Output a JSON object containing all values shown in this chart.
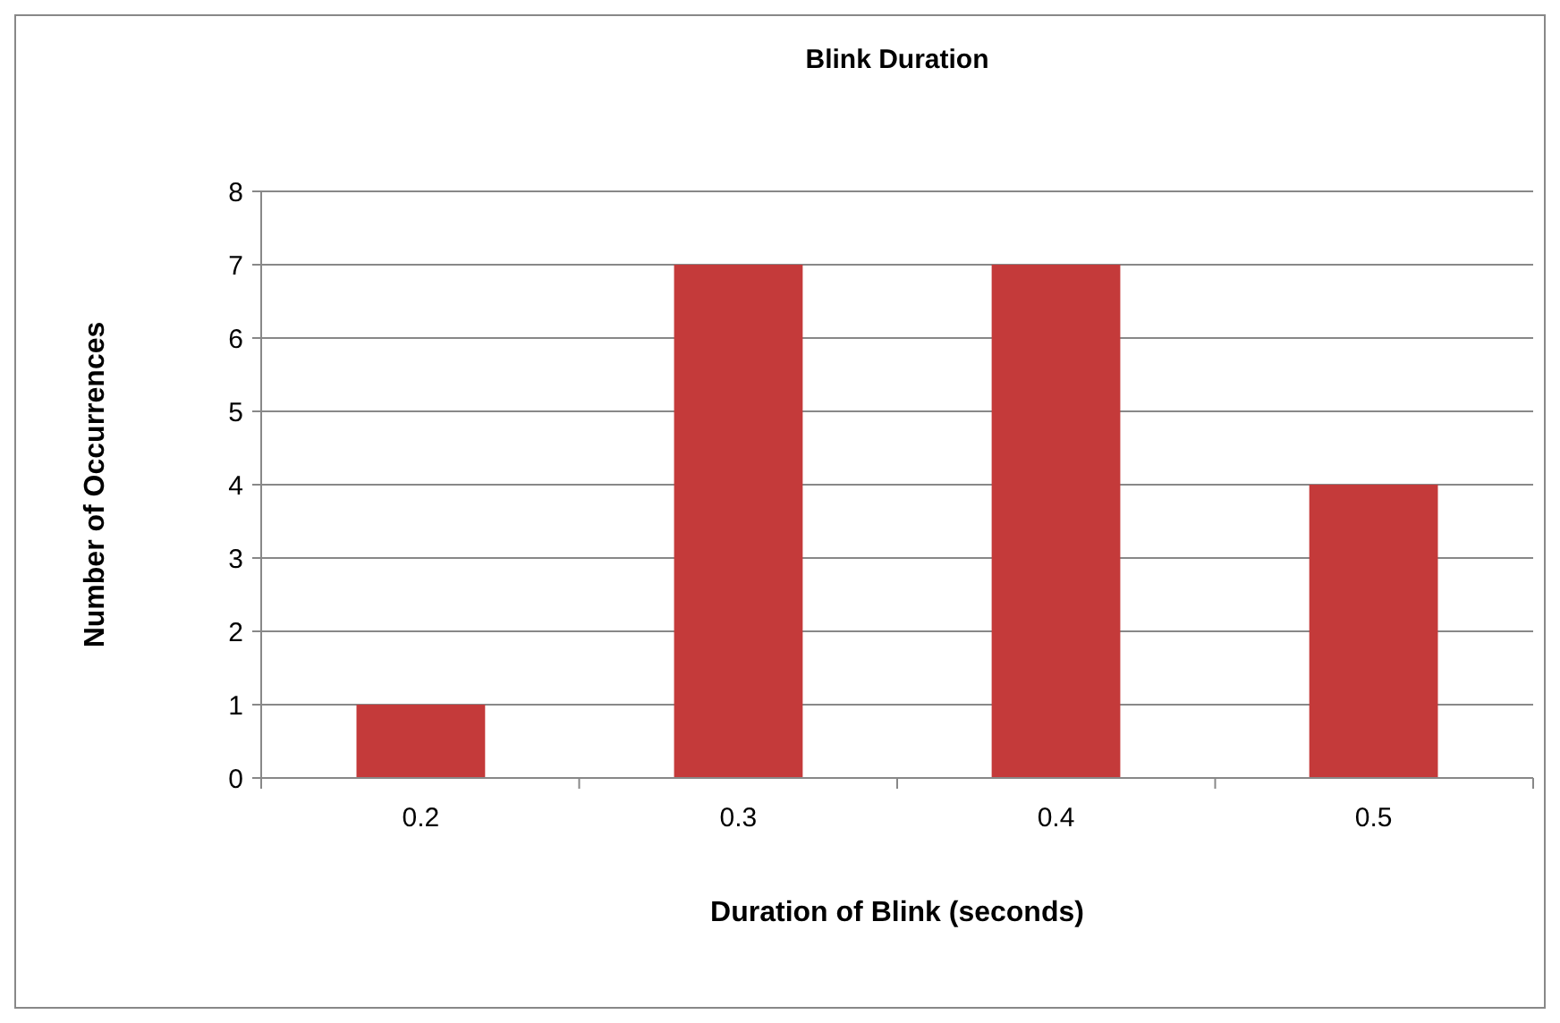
{
  "chart_data": {
    "type": "bar",
    "title": "Blink Duration",
    "xlabel": "Duration of Blink (seconds)",
    "ylabel": "Number of Occurrences",
    "categories": [
      "0.2",
      "0.3",
      "0.4",
      "0.5"
    ],
    "values": [
      1,
      7,
      7,
      4
    ],
    "color": "#c43a3a",
    "ylim": [
      0,
      8
    ],
    "yticks": [
      0,
      1,
      2,
      3,
      4,
      5,
      6,
      7,
      8
    ],
    "grid": "y"
  }
}
